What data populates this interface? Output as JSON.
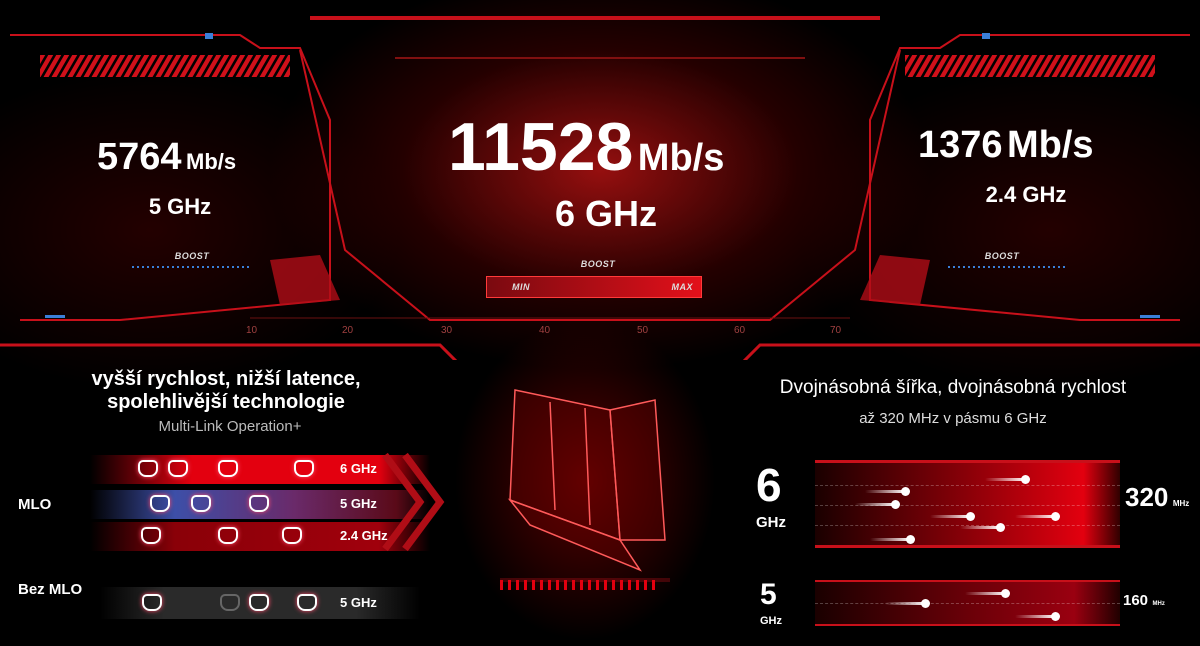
{
  "top": {
    "left": {
      "speed": "5764",
      "unit": "Mb/s",
      "band": "5 GHz",
      "boost": "BOOST"
    },
    "center": {
      "speed": "11528",
      "unit": "Mb/s",
      "band": "6 GHz",
      "boost": "BOOST",
      "min": "MIN",
      "max": "MAX",
      "level": 1.0
    },
    "right": {
      "speed": "1376",
      "unit": "Mb/s",
      "band": "2.4 GHz",
      "boost": "BOOST"
    },
    "scale_ticks": [
      "10",
      "20",
      "30",
      "40",
      "50",
      "60",
      "70"
    ]
  },
  "mlo": {
    "title_line1": "vyšší rychlost, nižší latence,",
    "title_line2": "spolehlivější technologie",
    "subtitle": "Multi-Link Operation+",
    "mlo_label": "MLO",
    "bez_label": "Bez MLO",
    "bands": [
      "6 GHz",
      "5 GHz",
      "2.4 GHz"
    ],
    "bez_band": "5 GHz"
  },
  "width": {
    "title": "Dvojnásobná šířka, dvojnásobná rychlost",
    "subtitle": "až 320 MHz v pásmu 6 GHz",
    "band6": {
      "num": "6",
      "unit": "GHz",
      "width": "320",
      "width_unit": "MHz"
    },
    "band5": {
      "num": "5",
      "unit": "GHz",
      "width": "160",
      "width_unit": "MHz"
    }
  },
  "colors": {
    "accent": "#e3000f",
    "blue": "#3a7fd8"
  }
}
